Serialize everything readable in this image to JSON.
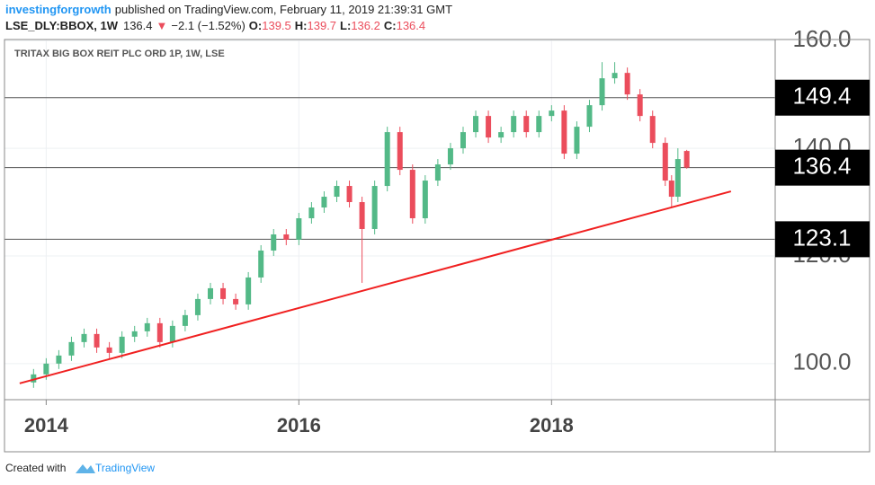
{
  "header": {
    "author": "investingforgrowth",
    "published": "published on TradingView.com, February 11, 2019 21:39:31 GMT",
    "symbol": "LSE_DLY:BBOX, 1W",
    "last": "136.4",
    "arrow": "▼",
    "change": "−2.1 (−1.52%)",
    "ohlc": [
      {
        "label": "O:",
        "value": 139.5
      },
      {
        "label": "H:",
        "value": 139.7
      },
      {
        "label": "L:",
        "value": 136.2
      },
      {
        "label": "C:",
        "value": 136.4
      }
    ]
  },
  "chart_data": {
    "type": "candlestick",
    "title": "TRITAX BIG BOX REIT PLC ORD 1P, 1W, LSE",
    "x": [
      2013.9,
      2014.0,
      2014.1,
      2014.2,
      2014.3,
      2014.4,
      2014.5,
      2014.6,
      2014.7,
      2014.8,
      2014.9,
      2015.0,
      2015.1,
      2015.2,
      2015.3,
      2015.4,
      2015.5,
      2015.6,
      2015.7,
      2015.8,
      2015.9,
      2016.0,
      2016.1,
      2016.2,
      2016.3,
      2016.4,
      2016.5,
      2016.6,
      2016.7,
      2016.8,
      2016.9,
      2017.0,
      2017.1,
      2017.2,
      2017.3,
      2017.4,
      2017.5,
      2017.6,
      2017.7,
      2017.8,
      2017.9,
      2018.0,
      2018.1,
      2018.2,
      2018.3,
      2018.4,
      2018.5,
      2018.6,
      2018.7,
      2018.8,
      2018.9,
      2018.95,
      2019.0,
      2019.07
    ],
    "open": [
      96.5,
      98,
      100,
      101.5,
      104,
      105.5,
      103,
      102,
      105,
      106,
      107.5,
      104,
      107,
      109,
      112,
      114,
      112,
      111,
      116,
      121,
      124,
      123,
      127,
      129,
      131,
      133,
      130,
      125,
      133,
      143,
      136,
      127,
      134,
      137,
      140,
      143,
      146,
      142,
      143,
      146,
      143,
      146,
      147,
      139,
      144,
      148,
      153,
      154,
      150,
      146,
      141,
      134,
      131,
      139.5
    ],
    "high": [
      99,
      101,
      102.5,
      105,
      106.5,
      106.5,
      104,
      106,
      107,
      108.5,
      108.5,
      108,
      110,
      113,
      115,
      115,
      113,
      117,
      122,
      125,
      125,
      128,
      130,
      132,
      134,
      134,
      131,
      134,
      144,
      144,
      137,
      135,
      138,
      141,
      144,
      147,
      147,
      144,
      147,
      147,
      147,
      148,
      148,
      145,
      149,
      156,
      156,
      155,
      151,
      147,
      142,
      135,
      140,
      139.7
    ],
    "low": [
      95.5,
      97,
      99,
      100.5,
      103,
      102,
      101,
      101,
      104,
      105,
      103,
      103,
      106,
      108,
      111,
      111,
      110,
      110,
      115,
      120,
      122,
      122,
      126,
      128,
      130,
      129,
      115,
      124,
      132,
      135,
      126,
      126,
      133,
      136,
      139,
      142,
      141,
      141,
      142,
      142,
      142,
      145,
      138,
      138,
      143,
      147,
      152,
      149,
      145,
      140,
      133,
      129,
      130,
      136.2
    ],
    "close": [
      98,
      100,
      101.5,
      104,
      105.5,
      103,
      102,
      105,
      106,
      107.5,
      104,
      107,
      109,
      112,
      114,
      112,
      111,
      116,
      121,
      124,
      123,
      127,
      129,
      131,
      133,
      130,
      125,
      133,
      143,
      136,
      127,
      134,
      137,
      140,
      143,
      146,
      142,
      143,
      146,
      143,
      146,
      147,
      139,
      144,
      148,
      153,
      154,
      150,
      146,
      141,
      134,
      131,
      138,
      136.4
    ],
    "up_color": "#53b987",
    "down_color": "#eb4d5c",
    "xlim": [
      2013.67,
      2019.77
    ],
    "xticks": [
      2014,
      2016,
      2018
    ],
    "ylim": [
      93.3,
      160.2
    ],
    "yticks": [
      {
        "value": 100,
        "label": "100.0"
      },
      {
        "value": 120,
        "label": "120.0"
      },
      {
        "value": 140,
        "label": "140.0"
      },
      {
        "value": 160,
        "label": "160.0"
      }
    ],
    "grid": true,
    "hlines": [
      149.4,
      136.4,
      123.1
    ],
    "trendline": {
      "x": [
        2013.79,
        2019.42
      ],
      "y": [
        96.33,
        132
      ],
      "color": "#f02020"
    }
  },
  "footer": {
    "created": "Created with",
    "brand": "TradingView"
  }
}
